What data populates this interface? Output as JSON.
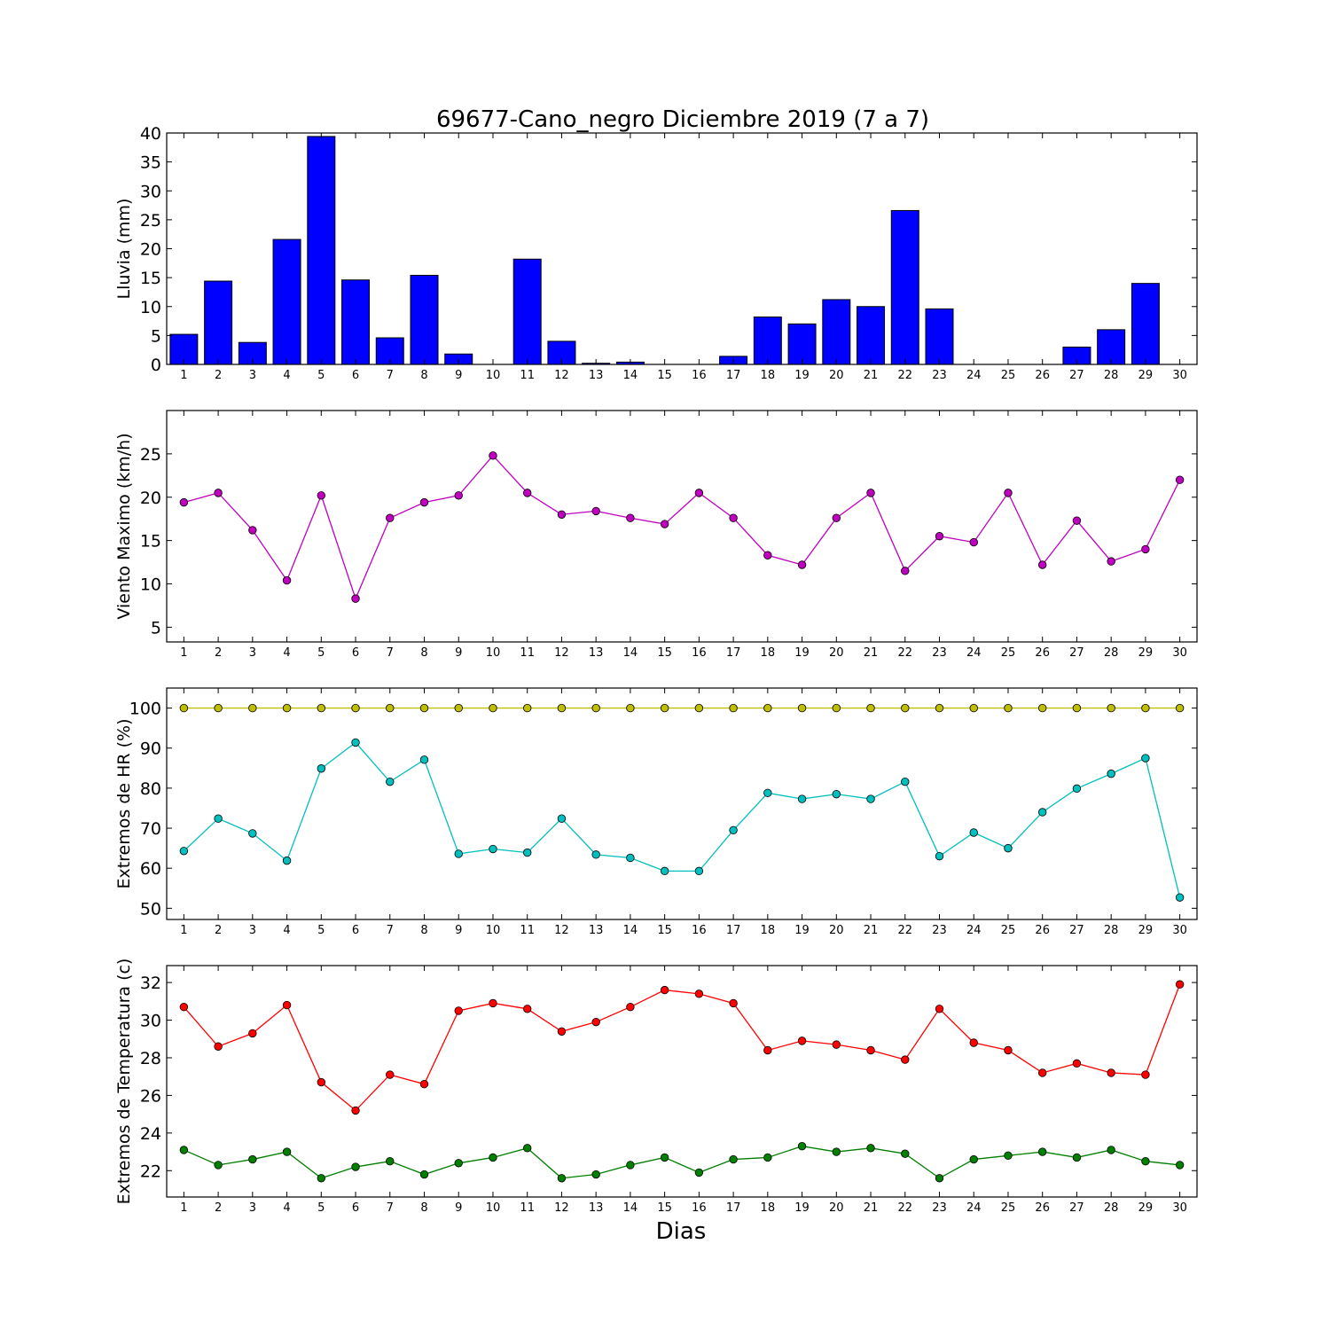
{
  "chart_data": {
    "title": "69677-Cano_negro Diciembre 2019  (7 a 7)",
    "xlabel": "Dias",
    "days": [
      1,
      2,
      3,
      4,
      5,
      6,
      7,
      8,
      9,
      10,
      11,
      12,
      13,
      14,
      15,
      16,
      17,
      18,
      19,
      20,
      21,
      22,
      23,
      24,
      25,
      26,
      27,
      28,
      29,
      30
    ],
    "panels": [
      {
        "type": "bar",
        "ylabel": "Lluvia (mm)",
        "ylim": [
          0,
          40
        ],
        "yticks": [
          0,
          5,
          10,
          15,
          20,
          25,
          30,
          35,
          40
        ],
        "series": [
          {
            "color": "#0000ff",
            "values": [
              5.2,
              14.4,
              3.8,
              21.6,
              39.4,
              14.6,
              4.6,
              15.4,
              1.8,
              0.0,
              18.2,
              4.0,
              0.2,
              0.4,
              0.0,
              0.0,
              1.4,
              8.2,
              7.0,
              11.2,
              10.0,
              26.6,
              9.6,
              0.0,
              0.0,
              0.0,
              3.0,
              6.0,
              14.0,
              0.0
            ]
          }
        ]
      },
      {
        "type": "line",
        "ylabel": "Viento Maximo (km/h)",
        "ylim": [
          3.3,
          30
        ],
        "yticks": [
          5,
          10,
          15,
          20,
          25
        ],
        "series": [
          {
            "color": "#bf00bf",
            "values": [
              19.4,
              20.5,
              16.2,
              10.4,
              20.2,
              8.3,
              17.6,
              19.4,
              20.2,
              24.8,
              20.5,
              18.0,
              18.4,
              17.6,
              16.9,
              20.5,
              17.6,
              13.3,
              12.2,
              17.6,
              20.5,
              11.5,
              15.5,
              14.8,
              20.5,
              12.2,
              17.3,
              12.6,
              14.0,
              22.0
            ]
          }
        ]
      },
      {
        "type": "line",
        "ylabel": "Extremos de HR (%)",
        "ylim": [
          47.2,
          105
        ],
        "yticks": [
          50,
          60,
          70,
          80,
          90,
          100
        ],
        "series": [
          {
            "color": "#bfbf00",
            "values": [
              100,
              100,
              100,
              100,
              100,
              100,
              100,
              100,
              100,
              100,
              100,
              100,
              100,
              100,
              100,
              100,
              100,
              100,
              100,
              100,
              100,
              100,
              100,
              100,
              100,
              100,
              100,
              100,
              100,
              100
            ]
          },
          {
            "color": "#00bfbf",
            "values": [
              64.3,
              72.4,
              68.7,
              61.9,
              84.9,
              91.4,
              81.6,
              87.1,
              63.6,
              64.8,
              63.9,
              72.4,
              63.4,
              62.6,
              59.3,
              59.3,
              69.5,
              78.8,
              77.3,
              78.5,
              77.3,
              81.6,
              63.0,
              68.9,
              65.0,
              74.0,
              79.9,
              83.6,
              87.5,
              52.7
            ]
          }
        ]
      },
      {
        "type": "line",
        "ylabel": "Extremos de Temperatura (c)",
        "ylim": [
          20.6,
          32.9
        ],
        "yticks": [
          22,
          24,
          26,
          28,
          30,
          32
        ],
        "series": [
          {
            "color": "#ff0000",
            "values": [
              30.7,
              28.6,
              29.3,
              30.8,
              26.7,
              25.2,
              27.1,
              26.6,
              30.5,
              30.9,
              30.6,
              29.4,
              29.9,
              30.7,
              31.6,
              31.4,
              30.9,
              28.4,
              28.9,
              28.7,
              28.4,
              27.9,
              30.6,
              28.8,
              28.4,
              27.2,
              27.7,
              27.2,
              27.1,
              31.9
            ]
          },
          {
            "color": "#007f00",
            "values": [
              23.1,
              22.3,
              22.6,
              23.0,
              21.6,
              22.2,
              22.5,
              21.8,
              22.4,
              22.7,
              23.2,
              21.6,
              21.8,
              22.3,
              22.7,
              21.9,
              22.6,
              22.7,
              23.3,
              23.0,
              23.2,
              22.9,
              21.6,
              22.6,
              22.8,
              23.0,
              22.7,
              23.1,
              22.5,
              22.3
            ]
          }
        ]
      }
    ]
  }
}
